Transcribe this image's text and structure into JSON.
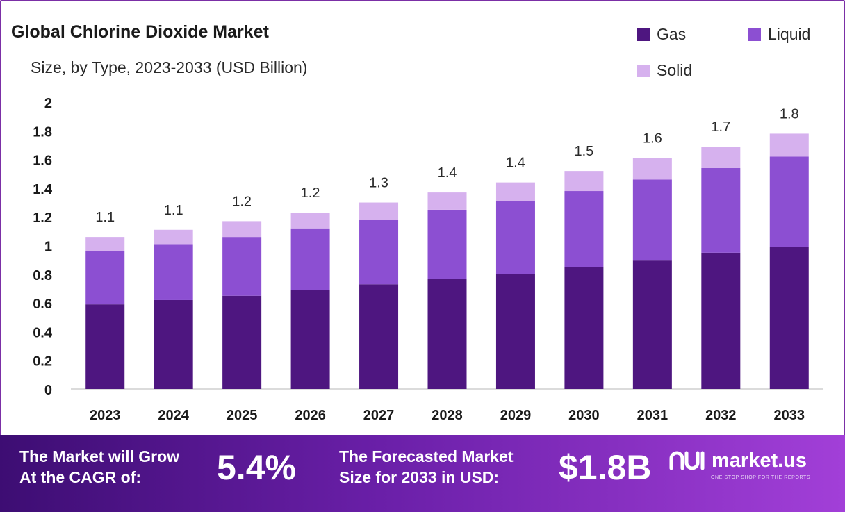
{
  "chart_data": {
    "type": "bar",
    "stacked": true,
    "title": "Global Chlorine Dioxide Market",
    "subtitle": "Size, by Type, 2023-2033 (USD Billion)",
    "categories": [
      "2023",
      "2024",
      "2025",
      "2026",
      "2027",
      "2028",
      "2029",
      "2030",
      "2031",
      "2032",
      "2033"
    ],
    "series": [
      {
        "name": "Gas",
        "color": "#4e1680",
        "values": [
          0.59,
          0.62,
          0.65,
          0.69,
          0.73,
          0.77,
          0.8,
          0.85,
          0.9,
          0.95,
          0.99
        ]
      },
      {
        "name": "Liquid",
        "color": "#8c4fd2",
        "values": [
          0.37,
          0.39,
          0.41,
          0.43,
          0.45,
          0.48,
          0.51,
          0.53,
          0.56,
          0.59,
          0.63
        ]
      },
      {
        "name": "Solid",
        "color": "#d6b1ee",
        "values": [
          0.1,
          0.1,
          0.11,
          0.11,
          0.12,
          0.12,
          0.13,
          0.14,
          0.15,
          0.15,
          0.16
        ]
      }
    ],
    "totals_labels": [
      "1.1",
      "1.1",
      "1.2",
      "1.2",
      "1.3",
      "1.4",
      "1.4",
      "1.5",
      "1.6",
      "1.7",
      "1.8"
    ],
    "y_ticks": [
      "0",
      "0.2",
      "0.4",
      "0.6",
      "0.8",
      "1",
      "1.2",
      "1.4",
      "1.6",
      "1.8",
      "2"
    ],
    "ylim": [
      0,
      2
    ],
    "grid": false,
    "legend_position": "top-right"
  },
  "footer": {
    "cagr_label_line1": "The Market will Grow",
    "cagr_label_line2": "At the CAGR of:",
    "cagr_value": "5.4%",
    "forecast_label_line1": "The Forecasted Market",
    "forecast_label_line2": "Size for 2033 in USD:",
    "forecast_value": "$1.8B",
    "brand_name": "market.us",
    "brand_tagline": "ONE STOP SHOP FOR THE REPORTS",
    "brand_icon": "market-us-logo-icon"
  }
}
